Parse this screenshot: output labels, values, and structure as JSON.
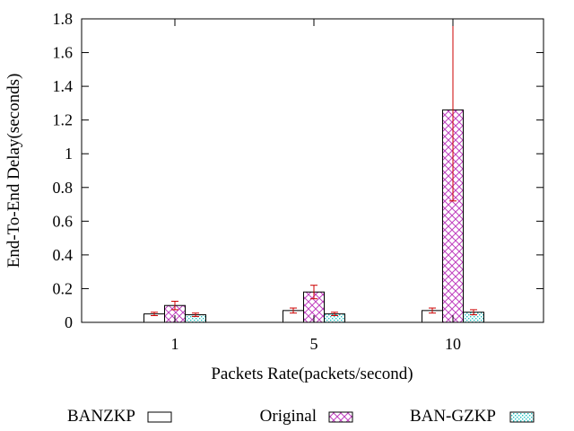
{
  "chart_data": {
    "type": "bar",
    "categories": [
      "1",
      "5",
      "10"
    ],
    "xlabel": "Packets Rate(packets/second)",
    "ylabel": "End-To-End Delay(seconds)",
    "ylim": [
      0,
      1.8
    ],
    "yticks": [
      0,
      0.2,
      0.4,
      0.6,
      0.8,
      1,
      1.2,
      1.4,
      1.6,
      1.8
    ],
    "ytick_labels": [
      "0",
      "0.2",
      "0.4",
      "0.6",
      "0.8",
      "1",
      "1.2",
      "1.4",
      "1.6",
      "1.8"
    ],
    "grid": false,
    "legend": "bottom",
    "series": [
      {
        "name": "BANZKP",
        "values": [
          0.05,
          0.07,
          0.07
        ],
        "errors": [
          0.01,
          0.015,
          0.015
        ],
        "pattern": "empty"
      },
      {
        "name": "Original",
        "values": [
          0.1,
          0.18,
          1.26
        ],
        "errors": [
          0.025,
          0.04,
          0.54
        ],
        "pattern": "crosshatch"
      },
      {
        "name": "BAN-GZKP",
        "values": [
          0.045,
          0.05,
          0.06
        ],
        "errors": [
          0.01,
          0.01,
          0.015
        ],
        "pattern": "dots"
      }
    ],
    "colors": {
      "original_pattern": "#c040c0",
      "bangzkp_pattern": "#20c0c0",
      "error_bar": "#cc0000",
      "axis": "#000000"
    }
  }
}
